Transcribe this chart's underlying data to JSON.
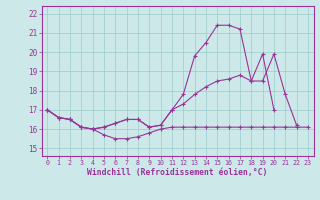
{
  "xlabel": "Windchill (Refroidissement éolien,°C)",
  "background_color": "#cce8e8",
  "line_color": "#993399",
  "grid_color": "#99cccc",
  "yticks": [
    15,
    16,
    17,
    18,
    19,
    20,
    21,
    22
  ],
  "xticks": [
    0,
    1,
    2,
    3,
    4,
    5,
    6,
    7,
    8,
    9,
    10,
    11,
    12,
    13,
    14,
    15,
    16,
    17,
    18,
    19,
    20,
    21,
    22,
    23
  ],
  "series1_x": [
    0,
    1,
    2,
    3,
    4,
    5,
    6,
    7,
    8,
    9,
    10,
    11,
    12,
    13,
    14,
    15,
    16,
    17,
    18,
    19,
    20,
    21,
    22,
    23
  ],
  "series1_y": [
    17.0,
    16.6,
    16.5,
    16.1,
    16.0,
    15.7,
    15.5,
    15.5,
    15.6,
    15.8,
    16.0,
    16.1,
    16.1,
    16.1,
    16.1,
    16.1,
    16.1,
    16.1,
    16.1,
    16.1,
    16.1,
    16.1,
    16.1,
    16.1
  ],
  "series2_x": [
    0,
    1,
    2,
    3,
    4,
    5,
    6,
    7,
    8,
    9,
    10,
    11,
    12,
    13,
    14,
    15,
    16,
    17,
    18,
    19,
    20,
    21,
    22
  ],
  "series2_y": [
    17.0,
    16.6,
    16.5,
    16.1,
    16.0,
    16.1,
    16.3,
    16.5,
    16.5,
    16.1,
    16.2,
    17.0,
    17.3,
    17.8,
    18.2,
    18.5,
    18.6,
    18.8,
    18.5,
    18.5,
    19.9,
    17.8,
    16.2
  ],
  "series3_x": [
    0,
    1,
    2,
    3,
    4,
    5,
    6,
    7,
    8,
    9,
    10,
    11,
    12,
    13,
    14,
    15,
    16,
    17,
    18,
    19,
    20
  ],
  "series3_y": [
    17.0,
    16.6,
    16.5,
    16.1,
    16.0,
    16.1,
    16.3,
    16.5,
    16.5,
    16.1,
    16.2,
    17.0,
    17.8,
    19.8,
    20.5,
    21.4,
    21.4,
    21.2,
    18.5,
    19.9,
    17.0
  ]
}
